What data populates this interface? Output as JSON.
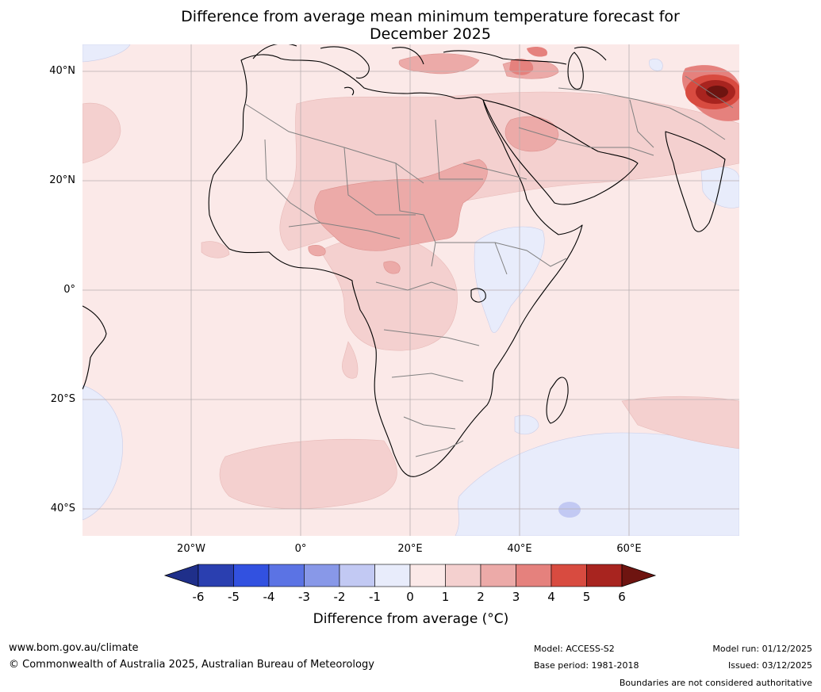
{
  "title": {
    "line1": "Difference from average mean minimum temperature forecast for",
    "line2": "December 2025"
  },
  "map": {
    "lat_labels": [
      "40°N",
      "20°N",
      "0°",
      "20°S",
      "40°S"
    ],
    "lon_labels": [
      "20°W",
      "0°",
      "20°E",
      "40°E",
      "60°E"
    ]
  },
  "colorbar": {
    "ticks": [
      "-6",
      "-5",
      "-4",
      "-3",
      "-2",
      "-1",
      "0",
      "1",
      "2",
      "3",
      "4",
      "5",
      "6"
    ],
    "colors": [
      "#1f2f8a",
      "#2a3fb0",
      "#3251e0",
      "#5b73e4",
      "#8898e8",
      "#c2c9f3",
      "#e8ecfb",
      "#fbe9e8",
      "#f4d0cf",
      "#ecaaa8",
      "#e5817d",
      "#d84b40",
      "#a8241f",
      "#6e1410"
    ],
    "label": "Difference from average (°C)"
  },
  "footer": {
    "website": "www.bom.gov.au/climate",
    "copyright": "© Commonwealth of Australia 2025, Australian Bureau of Meteorology",
    "model": "Model: ACCESS-S2",
    "base_period": "Base period: 1981-2018",
    "model_run": "Model run: 01/12/2025",
    "issued": "Issued: 03/12/2025",
    "disclaimer": "Boundaries are not considered authoritative"
  }
}
